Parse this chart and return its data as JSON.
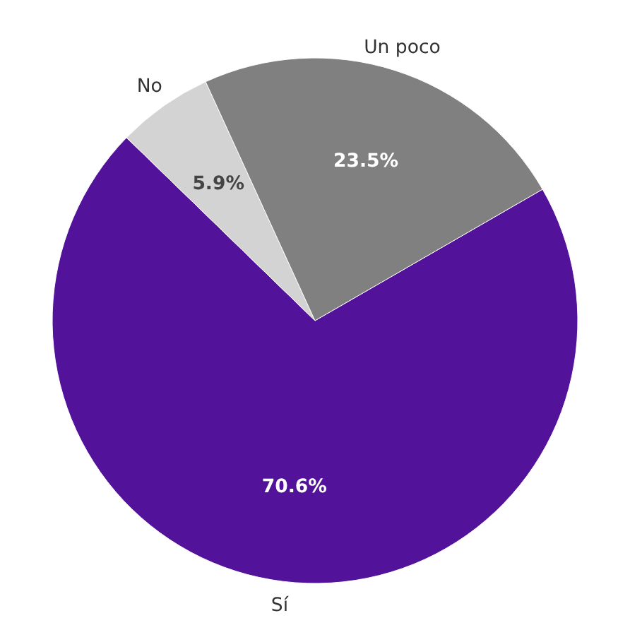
{
  "chart_data": {
    "type": "pie",
    "categories": [
      "Sí",
      "No",
      "Un poco"
    ],
    "values": [
      70.6,
      5.9,
      23.5
    ],
    "colors": [
      "#52139a",
      "#d3d3d3",
      "#808080"
    ],
    "value_labels": [
      "70.6%",
      "5.9%",
      "23.5%"
    ]
  }
}
